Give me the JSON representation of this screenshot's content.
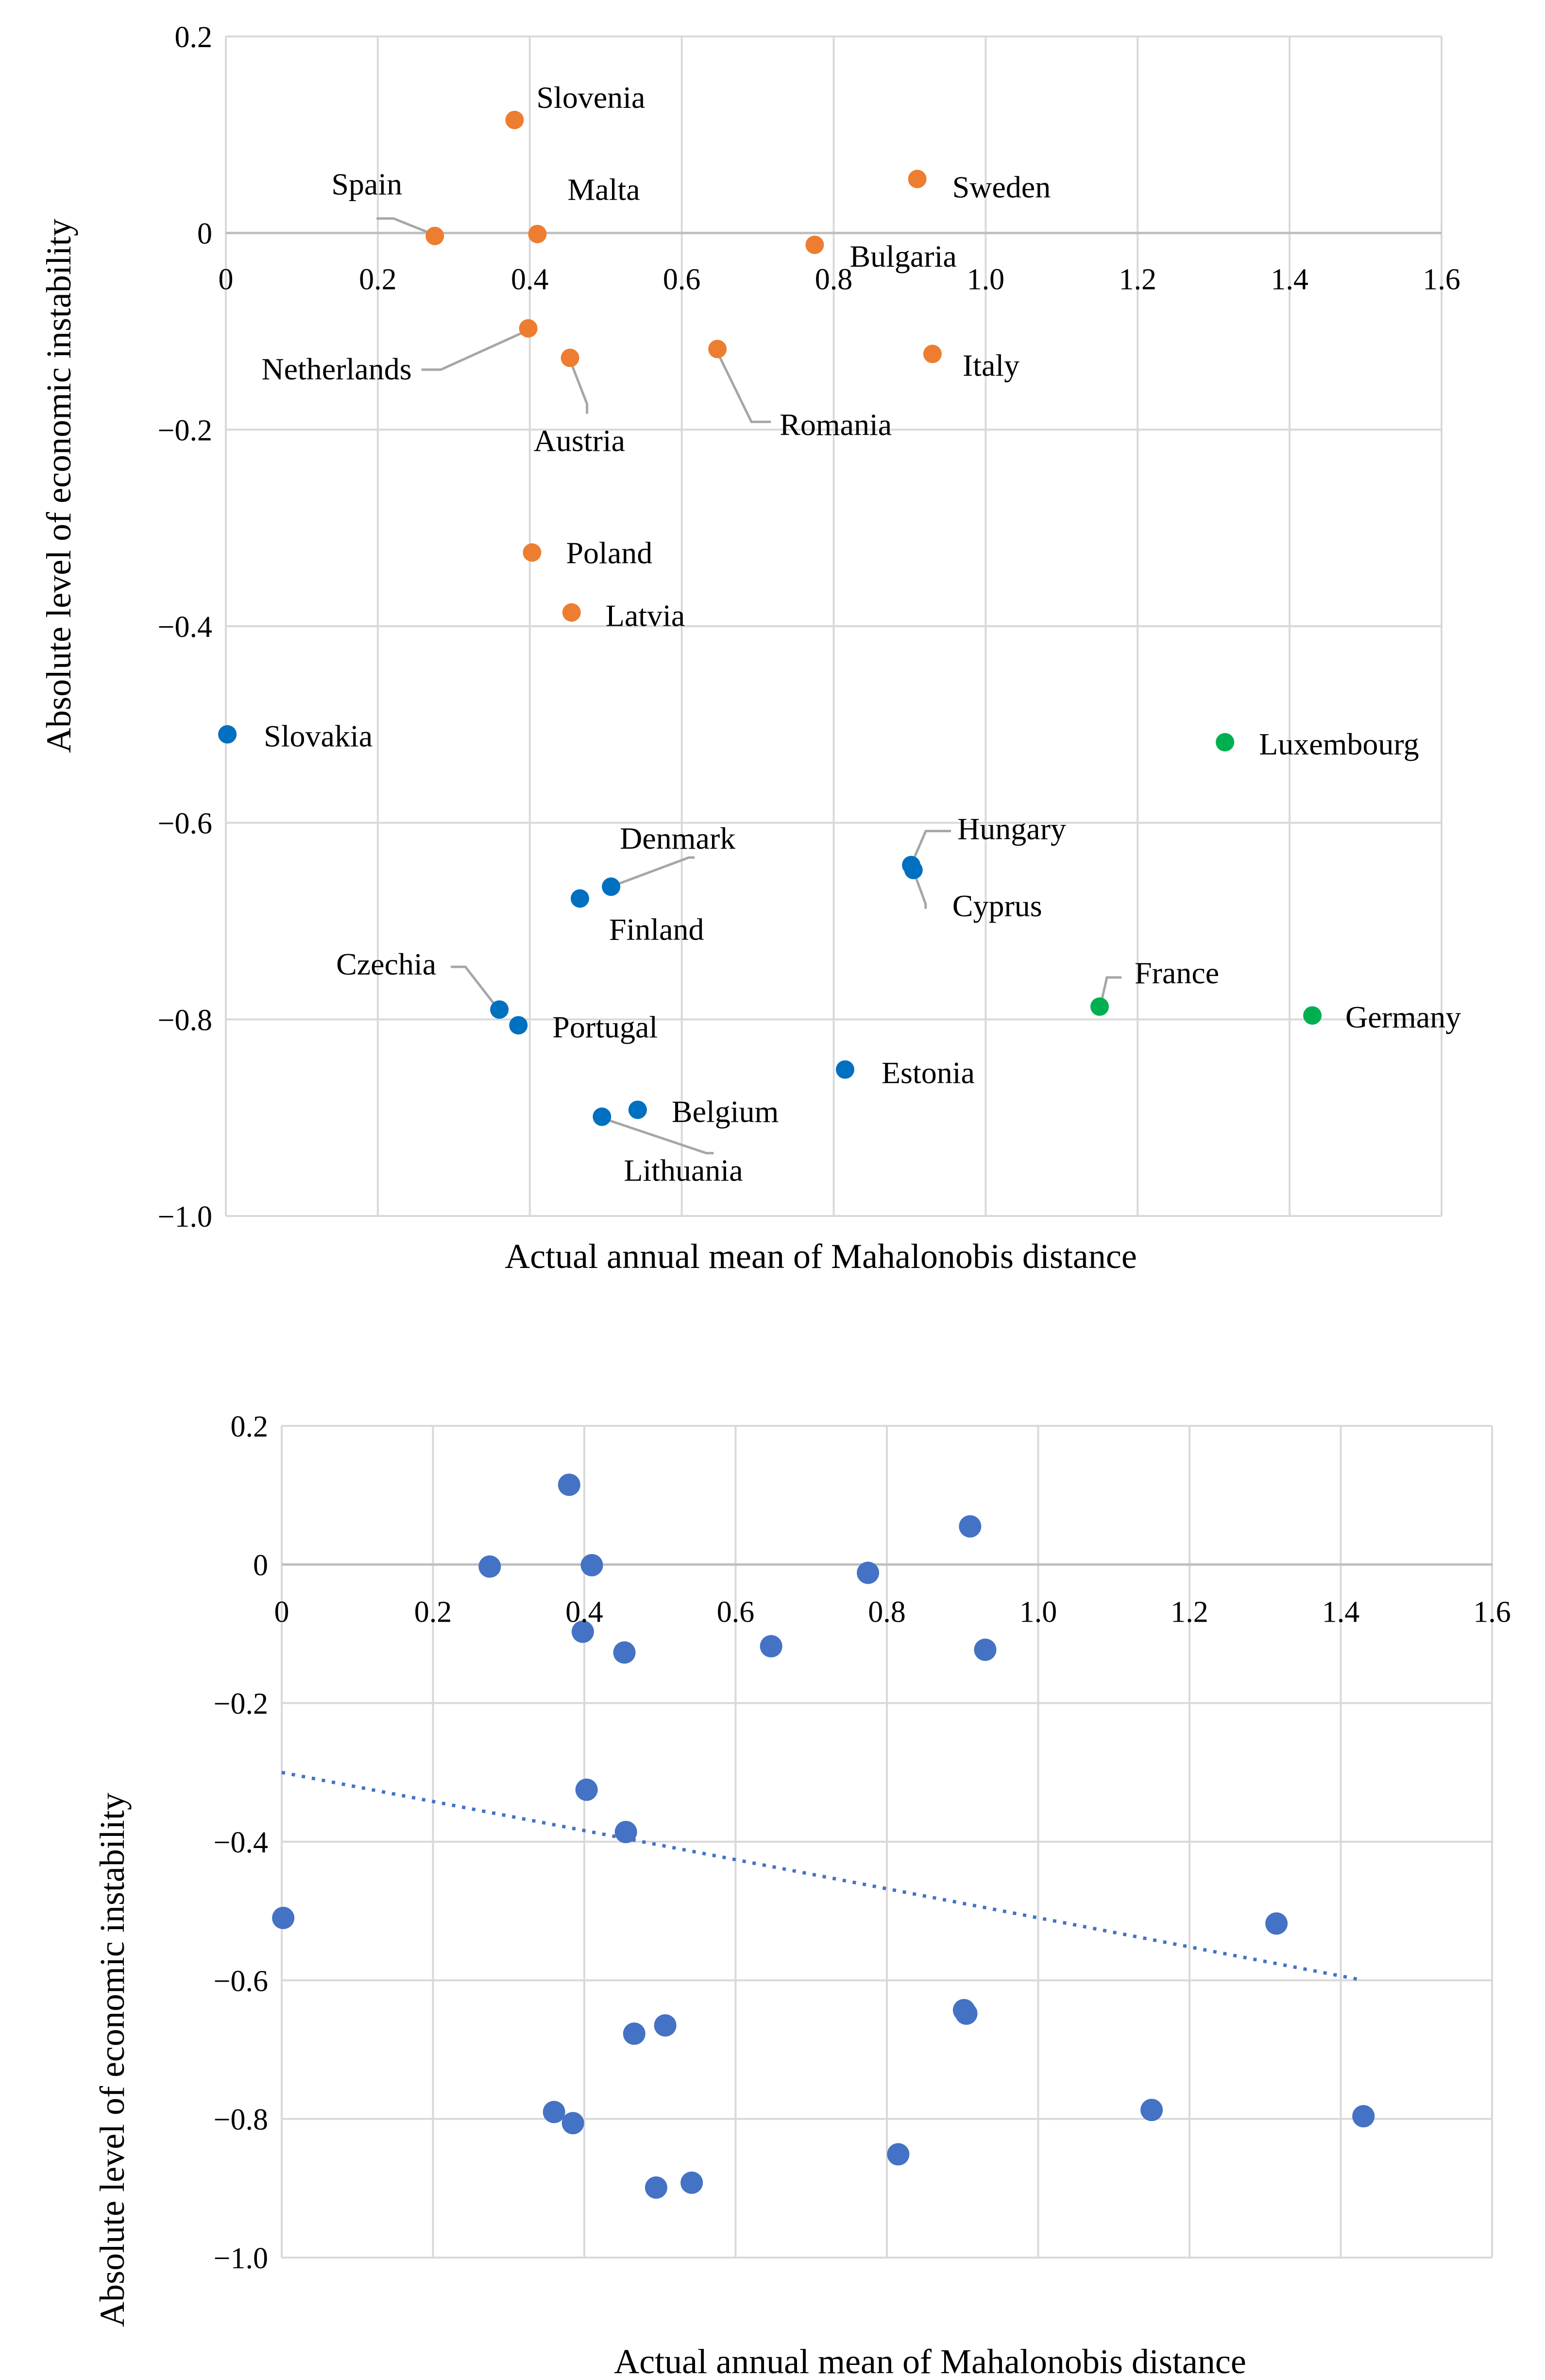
{
  "chart_data": [
    {
      "type": "scatter",
      "title": "",
      "xlabel": "Actual annual mean of Mahalonobis distance",
      "ylabel": "Absolute level of economic instability",
      "xlim": [
        0,
        1.6
      ],
      "ylim": [
        -1.0,
        0.2
      ],
      "xticks": [
        "0",
        "0.2",
        "0.4",
        "0.6",
        "0.8",
        "1.0",
        "1.2",
        "1.4",
        "1.6"
      ],
      "yticks": [
        "0.2",
        "0",
        "−0.2",
        "−0.4",
        "−0.6",
        "−0.8",
        "−1.0"
      ],
      "grid": true,
      "colors": {
        "group1": "#ed7d31",
        "group2": "#0070c0",
        "group3": "#00b050"
      },
      "points": [
        {
          "label": "Slovenia",
          "x": 0.38,
          "y": 0.115,
          "group": "group1"
        },
        {
          "label": "Sweden",
          "x": 0.91,
          "y": 0.055,
          "group": "group1"
        },
        {
          "label": "Spain",
          "x": 0.275,
          "y": -0.003,
          "group": "group1"
        },
        {
          "label": "Malta",
          "x": 0.41,
          "y": -0.001,
          "group": "group1"
        },
        {
          "label": "Bulgaria",
          "x": 0.775,
          "y": -0.012,
          "group": "group1"
        },
        {
          "label": "Netherlands",
          "x": 0.398,
          "y": -0.097,
          "group": "group1"
        },
        {
          "label": "Austria",
          "x": 0.453,
          "y": -0.127,
          "group": "group1"
        },
        {
          "label": "Romania",
          "x": 0.647,
          "y": -0.118,
          "group": "group1"
        },
        {
          "label": "Italy",
          "x": 0.93,
          "y": -0.123,
          "group": "group1"
        },
        {
          "label": "Poland",
          "x": 0.403,
          "y": -0.325,
          "group": "group1"
        },
        {
          "label": "Latvia",
          "x": 0.455,
          "y": -0.386,
          "group": "group1"
        },
        {
          "label": "Slovakia",
          "x": 0.002,
          "y": -0.51,
          "group": "group2"
        },
        {
          "label": "Luxembourg",
          "x": 1.315,
          "y": -0.518,
          "group": "group3"
        },
        {
          "label": "Hungary",
          "x": 0.902,
          "y": -0.643,
          "group": "group2"
        },
        {
          "label": "Cyprus",
          "x": 0.905,
          "y": -0.648,
          "group": "group2"
        },
        {
          "label": "Denmark",
          "x": 0.507,
          "y": -0.665,
          "group": "group2"
        },
        {
          "label": "Finland",
          "x": 0.466,
          "y": -0.677,
          "group": "group2"
        },
        {
          "label": "Czechia",
          "x": 0.36,
          "y": -0.79,
          "group": "group2"
        },
        {
          "label": "Portugal",
          "x": 0.385,
          "y": -0.806,
          "group": "group2"
        },
        {
          "label": "France",
          "x": 1.15,
          "y": -0.787,
          "group": "group3"
        },
        {
          "label": "Germany",
          "x": 1.43,
          "y": -0.796,
          "group": "group3"
        },
        {
          "label": "Estonia",
          "x": 0.815,
          "y": -0.851,
          "group": "group2"
        },
        {
          "label": "Belgium",
          "x": 0.542,
          "y": -0.892,
          "group": "group2"
        },
        {
          "label": "Lithuania",
          "x": 0.495,
          "y": -0.899,
          "group": "group2"
        }
      ]
    },
    {
      "type": "scatter",
      "title": "",
      "xlabel": "Actual annual mean of Mahalonobis distance",
      "ylabel": "Absolute level of economic instability",
      "xlim": [
        0,
        1.6
      ],
      "ylim": [
        -1.0,
        0.2
      ],
      "xticks": [
        "0",
        "0.2",
        "0.4",
        "0.6",
        "0.8",
        "1.0",
        "1.2",
        "1.4",
        "1.6"
      ],
      "yticks": [
        "0.2",
        "0",
        "−0.2",
        "−0.4",
        "−0.6",
        "−0.8",
        "−1.0"
      ],
      "grid": true,
      "colors": {
        "points": "#4472c4",
        "trend": "#4472c4"
      },
      "trendline": {
        "type": "linear",
        "style": "dotted",
        "x": [
          0,
          1.43
        ],
        "y": [
          -0.3,
          -0.6
        ]
      },
      "points": [
        {
          "x": 0.38,
          "y": 0.115
        },
        {
          "x": 0.91,
          "y": 0.055
        },
        {
          "x": 0.275,
          "y": -0.003
        },
        {
          "x": 0.41,
          "y": -0.001
        },
        {
          "x": 0.775,
          "y": -0.012
        },
        {
          "x": 0.398,
          "y": -0.097
        },
        {
          "x": 0.453,
          "y": -0.127
        },
        {
          "x": 0.647,
          "y": -0.118
        },
        {
          "x": 0.93,
          "y": -0.123
        },
        {
          "x": 0.403,
          "y": -0.325
        },
        {
          "x": 0.455,
          "y": -0.386
        },
        {
          "x": 0.002,
          "y": -0.51
        },
        {
          "x": 1.315,
          "y": -0.518
        },
        {
          "x": 0.902,
          "y": -0.643
        },
        {
          "x": 0.905,
          "y": -0.648
        },
        {
          "x": 0.507,
          "y": -0.665
        },
        {
          "x": 0.466,
          "y": -0.677
        },
        {
          "x": 0.36,
          "y": -0.79
        },
        {
          "x": 0.385,
          "y": -0.806
        },
        {
          "x": 1.15,
          "y": -0.787
        },
        {
          "x": 1.43,
          "y": -0.796
        },
        {
          "x": 0.815,
          "y": -0.851
        },
        {
          "x": 0.542,
          "y": -0.892
        },
        {
          "x": 0.495,
          "y": -0.899
        }
      ]
    }
  ]
}
